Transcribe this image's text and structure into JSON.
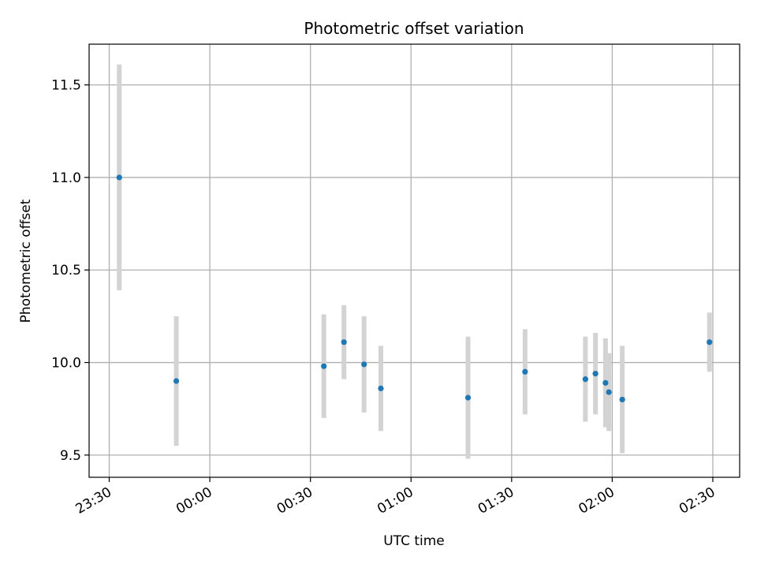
{
  "chart_data": {
    "type": "scatter",
    "title": "Photometric offset variation",
    "xlabel": "UTC time",
    "ylabel": "Photometric offset",
    "x_axis_kind": "time",
    "xlim": [
      "23:24",
      "02:38"
    ],
    "ylim": [
      9.38,
      11.72
    ],
    "x_ticks": [
      "23:30",
      "00:00",
      "00:30",
      "01:00",
      "01:30",
      "02:00",
      "02:30"
    ],
    "y_ticks": [
      "9.5",
      "10.0",
      "10.5",
      "11.0",
      "11.5"
    ],
    "grid": true,
    "series": [
      {
        "marker_color": "#1f77b4",
        "errorbar_color": "#d3d3d3",
        "points": [
          {
            "x": "23:33",
            "y": 11.0,
            "err": 0.61
          },
          {
            "x": "23:50",
            "y": 9.9,
            "err": 0.35
          },
          {
            "x": "00:34",
            "y": 9.98,
            "err": 0.28
          },
          {
            "x": "00:40",
            "y": 10.11,
            "err": 0.2
          },
          {
            "x": "00:46",
            "y": 9.99,
            "err": 0.26
          },
          {
            "x": "00:51",
            "y": 9.86,
            "err": 0.23
          },
          {
            "x": "01:17",
            "y": 9.81,
            "err": 0.33
          },
          {
            "x": "01:34",
            "y": 9.95,
            "err": 0.23
          },
          {
            "x": "01:52",
            "y": 9.91,
            "err": 0.23
          },
          {
            "x": "01:55",
            "y": 9.94,
            "err": 0.22
          },
          {
            "x": "01:58",
            "y": 9.89,
            "err": 0.24
          },
          {
            "x": "01:59",
            "y": 9.84,
            "err": 0.21
          },
          {
            "x": "02:03",
            "y": 9.8,
            "err": 0.29
          },
          {
            "x": "02:29",
            "y": 10.11,
            "err": 0.16
          }
        ]
      }
    ]
  }
}
